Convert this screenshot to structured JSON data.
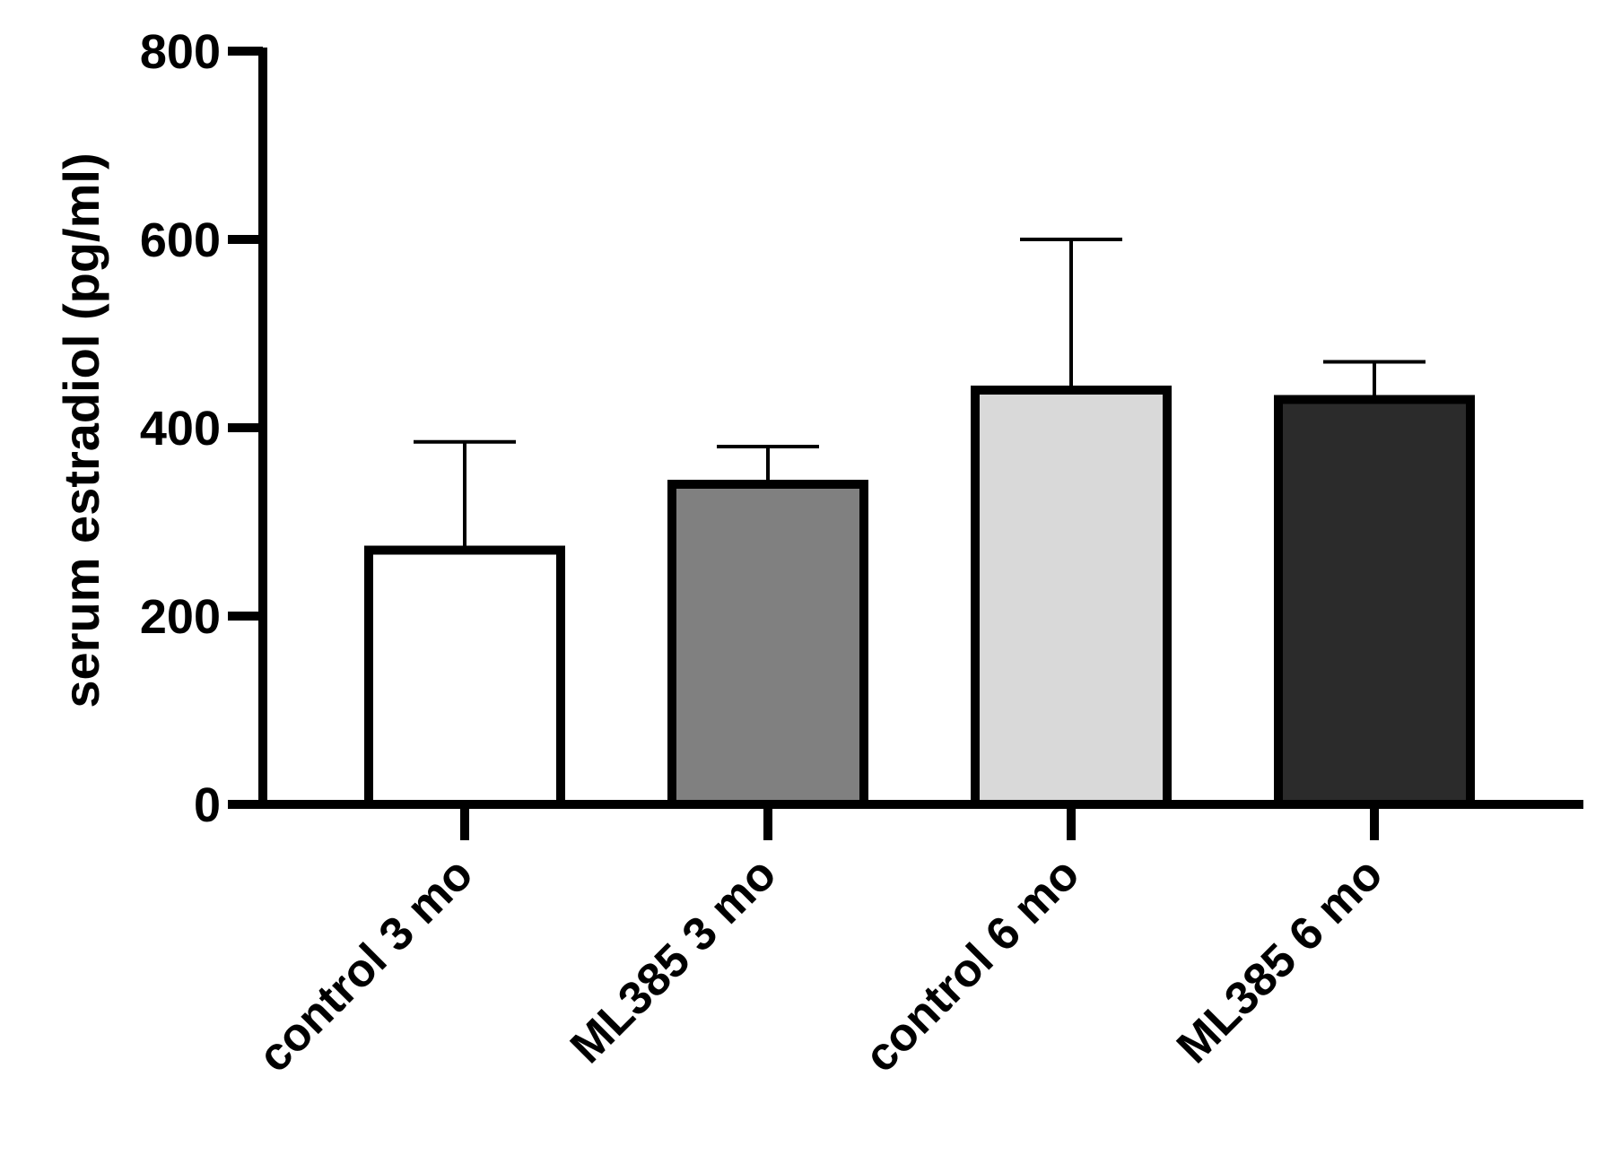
{
  "chart_data": {
    "type": "bar",
    "title": "",
    "xlabel": "",
    "ylabel": "serum estradiol (pg/ml)",
    "ylim": [
      0,
      800
    ],
    "yticks": [
      0,
      200,
      400,
      600,
      800
    ],
    "ytick_labels": [
      "0",
      "200",
      "400",
      "600",
      "800"
    ],
    "categories": [
      "control 3 mo",
      "ML385 3 mo",
      "control 6 mo",
      "ML385 6 mo"
    ],
    "values": [
      270,
      340,
      440,
      430
    ],
    "error_upper": [
      385,
      380,
      600,
      470
    ],
    "bar_colors": [
      "#ffffff",
      "#808080",
      "#d9d9d9",
      "#2b2b2b"
    ],
    "axis_color": "#000000"
  }
}
